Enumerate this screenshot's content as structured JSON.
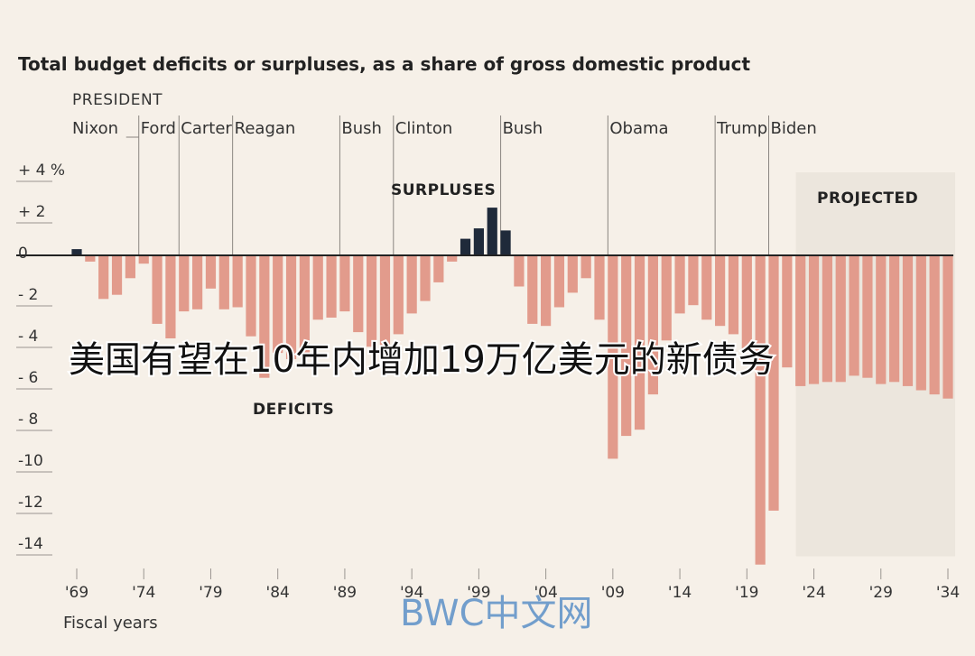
{
  "chart_data": {
    "type": "bar",
    "title": "Total budget deficits or surpluses, as a share of gross domestic product",
    "xlabel": "Fiscal years",
    "ylabel": "",
    "ylim": [
      -15.5,
      4.5
    ],
    "xlim": [
      1969,
      2034
    ],
    "y_ticks": [
      {
        "value": 4,
        "label": "+ 4 %"
      },
      {
        "value": 2,
        "label": "+ 2"
      },
      {
        "value": 0,
        "label": "0"
      },
      {
        "value": -2,
        "label": "- 2"
      },
      {
        "value": -4,
        "label": "- 4"
      },
      {
        "value": -6,
        "label": "- 6"
      },
      {
        "value": -8,
        "label": "- 8"
      },
      {
        "value": -10,
        "label": "-10"
      },
      {
        "value": -12,
        "label": "-12"
      },
      {
        "value": -14,
        "label": "-14"
      }
    ],
    "x_ticks": [
      {
        "year": 1969,
        "label": "'69"
      },
      {
        "year": 1974,
        "label": "'74"
      },
      {
        "year": 1979,
        "label": "'79"
      },
      {
        "year": 1984,
        "label": "'84"
      },
      {
        "year": 1989,
        "label": "'89"
      },
      {
        "year": 1994,
        "label": "'94"
      },
      {
        "year": 1999,
        "label": "'99"
      },
      {
        "year": 2004,
        "label": "'04"
      },
      {
        "year": 2009,
        "label": "'09"
      },
      {
        "year": 2014,
        "label": "'14"
      },
      {
        "year": 2019,
        "label": "'19"
      },
      {
        "year": 2024,
        "label": "'24"
      },
      {
        "year": 2029,
        "label": "'29"
      },
      {
        "year": 2034,
        "label": "'34"
      }
    ],
    "years": [
      1969,
      1970,
      1971,
      1972,
      1973,
      1974,
      1975,
      1976,
      1977,
      1978,
      1979,
      1980,
      1981,
      1982,
      1983,
      1984,
      1985,
      1986,
      1987,
      1988,
      1989,
      1990,
      1991,
      1992,
      1993,
      1994,
      1995,
      1996,
      1997,
      1998,
      1999,
      2000,
      2001,
      2002,
      2003,
      2004,
      2005,
      2006,
      2007,
      2008,
      2009,
      2010,
      2011,
      2012,
      2013,
      2014,
      2015,
      2016,
      2017,
      2018,
      2019,
      2020,
      2021,
      2022,
      2023,
      2024,
      2025,
      2026,
      2027,
      2028,
      2029,
      2030,
      2031,
      2032,
      2033,
      2034
    ],
    "values": [
      0.3,
      -0.3,
      -2.1,
      -1.9,
      -1.1,
      -0.4,
      -3.3,
      -4.0,
      -2.7,
      -2.6,
      -1.6,
      -2.6,
      -2.5,
      -3.9,
      -5.9,
      -4.7,
      -5.0,
      -4.9,
      -3.1,
      -3.0,
      -2.7,
      -3.7,
      -4.4,
      -4.5,
      -3.8,
      -2.8,
      -2.2,
      -1.3,
      -0.3,
      0.8,
      1.3,
      2.3,
      1.2,
      -1.5,
      -3.3,
      -3.4,
      -2.5,
      -1.8,
      -1.1,
      -3.1,
      -9.8,
      -8.7,
      -8.4,
      -6.7,
      -4.1,
      -2.8,
      -2.4,
      -3.1,
      -3.4,
      -3.8,
      -4.6,
      -14.9,
      -12.3,
      -5.4,
      -6.3,
      -6.2,
      -6.1,
      -6.1,
      -5.8,
      -5.9,
      -6.2,
      -6.1,
      -6.3,
      -6.5,
      -6.7,
      -6.9
    ],
    "projected_start_year": 2024,
    "colors": {
      "deficit": "#e29b8c",
      "surplus": "#1f2a3a",
      "projected_band": "#ece6dd",
      "background": "#f6f0e8",
      "grid": "#9a9590"
    },
    "annotations": {
      "president_heading": "PRESIDENT",
      "surpluses": "SURPLUSES",
      "deficits": "DEFICITS",
      "projected": "PROJECTED"
    },
    "presidents": [
      {
        "name": "Nixon",
        "start": 1969
      },
      {
        "name": "Ford",
        "start": 1974
      },
      {
        "name": "Carter",
        "start": 1977
      },
      {
        "name": "Reagan",
        "start": 1981
      },
      {
        "name": "Bush",
        "start": 1989
      },
      {
        "name": "Clinton",
        "start": 1993
      },
      {
        "name": "Bush",
        "start": 2001
      },
      {
        "name": "Obama",
        "start": 2009
      },
      {
        "name": "Trump",
        "start": 2017
      },
      {
        "name": "Biden",
        "start": 2021
      }
    ]
  },
  "overlay_text": "美国有望在10年内增加19万亿美元的新债务",
  "watermark": "BWC中文网"
}
